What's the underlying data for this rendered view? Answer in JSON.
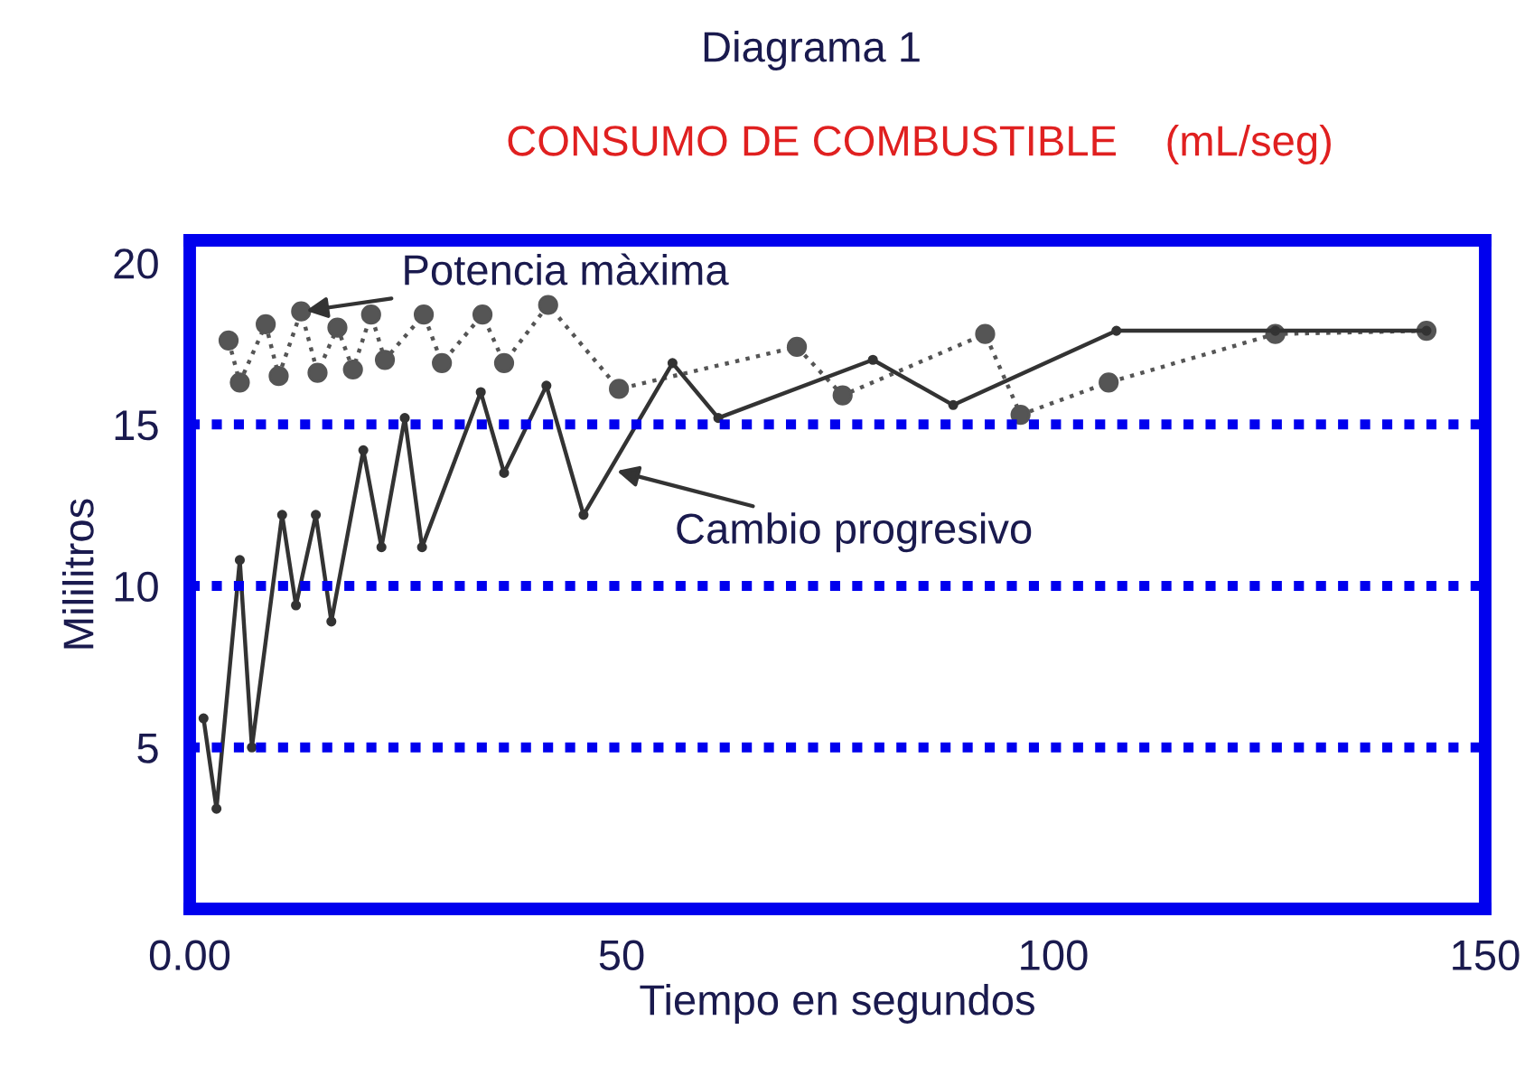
{
  "chart_data": {
    "type": "line",
    "title": "Diagrama 1",
    "subtitle": "CONSUMO DE COMBUSTIBLE    (mL/seg)",
    "xlabel": "Tiempo en segundos",
    "ylabel": "Mililitros",
    "xlim": [
      0,
      150
    ],
    "xticks": [
      {
        "value": 0,
        "label": "0.00"
      },
      50,
      100,
      150
    ],
    "ylim": [
      0,
      20.7
    ],
    "yticks": [
      5,
      10,
      15,
      20
    ],
    "series": [
      {
        "color": "#555555",
        "line_style": "dotted",
        "x": [
          4.5,
          5.8,
          8.8,
          10.3,
          12.9,
          14.8,
          17.1,
          18.9,
          21.0,
          22.6,
          27.1,
          29.2,
          33.9,
          36.4,
          41.5,
          49.7,
          70.3,
          75.6,
          92.1,
          96.2,
          106.4,
          125.7,
          143.2
        ],
        "values": [
          17.6,
          16.3,
          18.1,
          16.5,
          18.5,
          16.6,
          18.0,
          16.7,
          18.4,
          17.0,
          18.4,
          16.9,
          18.4,
          16.9,
          18.7,
          16.1,
          17.4,
          15.9,
          17.8,
          15.3,
          16.3,
          17.8,
          17.9
        ]
      },
      {
        "color": "#333333",
        "line_style": "solid",
        "x": [
          1.6,
          3.1,
          5.8,
          7.2,
          10.7,
          12.3,
          14.6,
          16.4,
          20.1,
          22.2,
          24.9,
          26.9,
          33.7,
          36.4,
          41.3,
          45.6,
          55.9,
          61.2,
          79.1,
          88.4,
          107.3,
          125.7,
          143.2
        ],
        "values": [
          5.9,
          3.1,
          10.8,
          5.0,
          12.2,
          9.4,
          12.2,
          8.9,
          14.2,
          11.2,
          15.2,
          11.2,
          16.0,
          13.5,
          16.2,
          12.2,
          16.9,
          15.2,
          17.0,
          15.6,
          17.9,
          17.9,
          17.9
        ]
      }
    ],
    "ref_lines": [
      {
        "axis": "y",
        "value": 5,
        "color": "#0000ee",
        "line_style": "dotted"
      },
      {
        "axis": "y",
        "value": 10,
        "color": "#0000ee",
        "line_style": "dotted"
      },
      {
        "axis": "y",
        "value": 15,
        "color": "#0000ee",
        "line_style": "dotted"
      }
    ],
    "annotations": [
      {
        "text": "Potencia màxima",
        "x": 12.9,
        "y": 18.5
      },
      {
        "text": "Cambio progresivo",
        "x": 48.9,
        "y": 13.6
      }
    ],
    "marker": "circle"
  }
}
